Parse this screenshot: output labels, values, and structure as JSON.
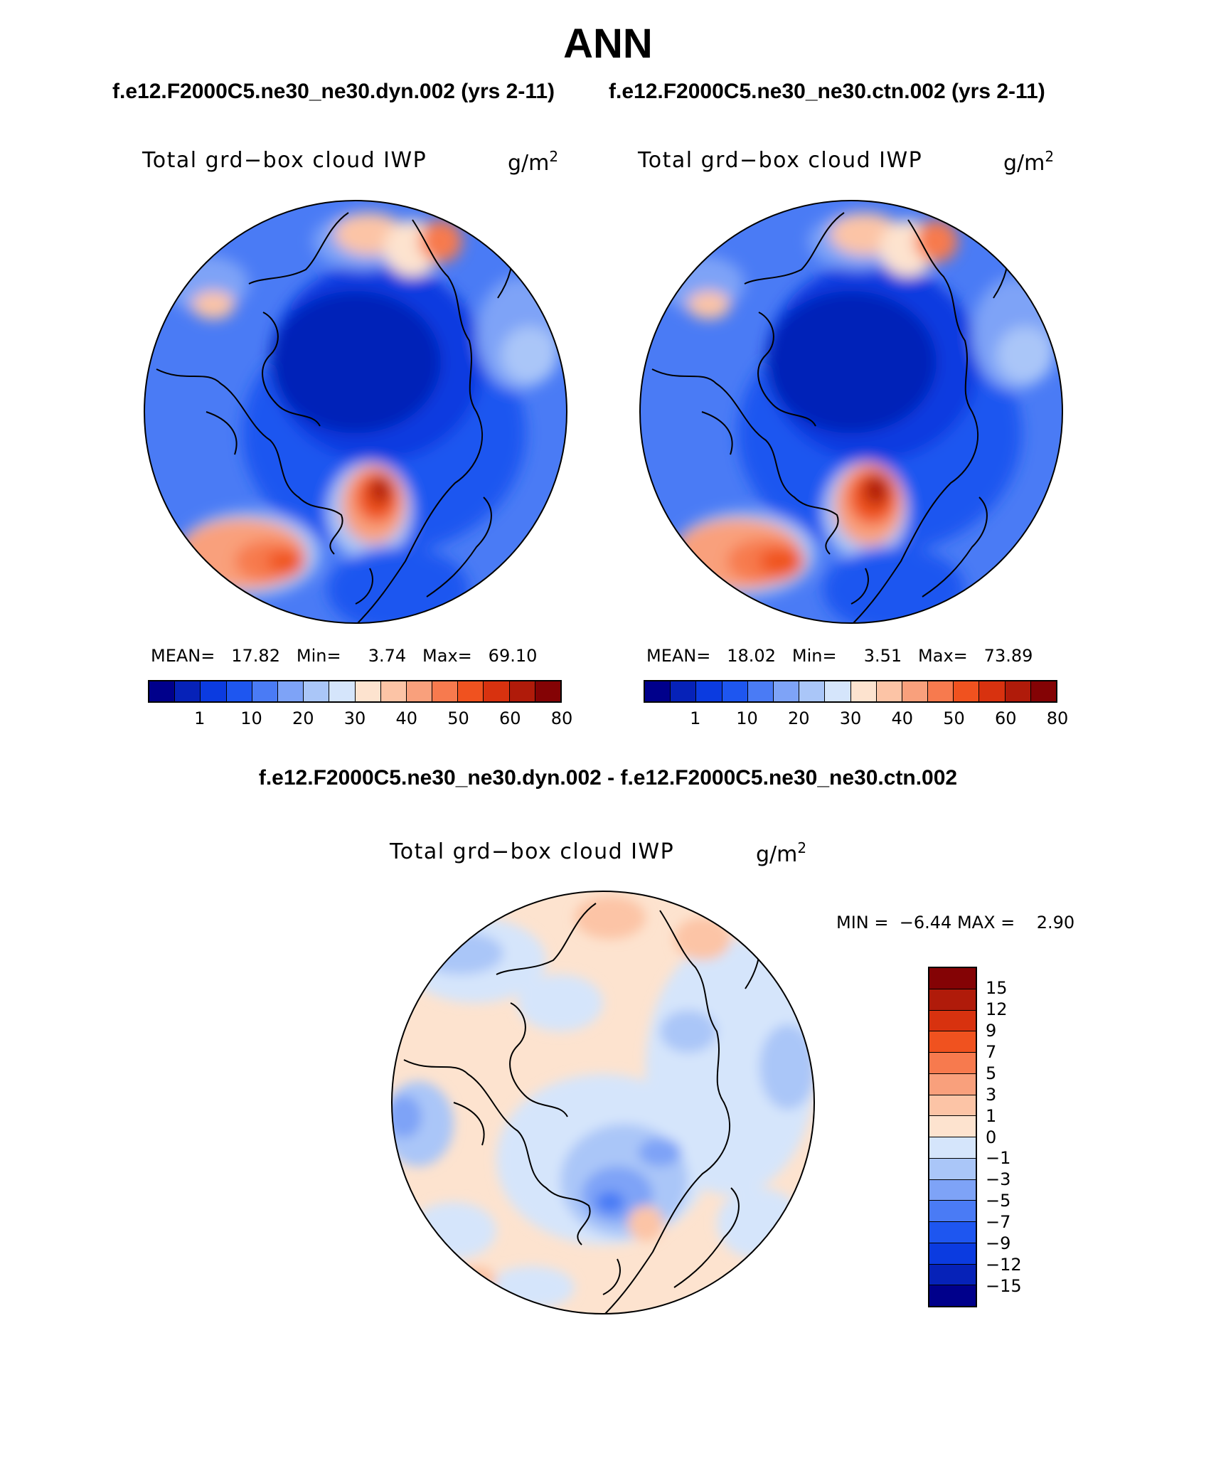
{
  "title": "ANN",
  "case_titles": {
    "left": "f.e12.F2000C5.ne30_ne30.dyn.002 (yrs 2-11)",
    "right": "f.e12.F2000C5.ne30_ne30.ctn.002 (yrs 2-11)"
  },
  "diff_title": "f.e12.F2000C5.ne30_ne30.dyn.002 - f.e12.F2000C5.ne30_ne30.ctn.002",
  "panels": [
    {
      "variable": "Total grd−box cloud IWP",
      "units_base": "g/m",
      "units_exp": "2",
      "mean_label": "MEAN=",
      "mean": "17.82",
      "min_label": "Min=",
      "min": "3.74",
      "max_label": "Max=",
      "max": "69.10"
    },
    {
      "variable": "Total grd−box cloud IWP",
      "units_base": "g/m",
      "units_exp": "2",
      "mean_label": "MEAN=",
      "mean": "18.02",
      "min_label": "Min=",
      "min": "3.51",
      "max_label": "Max=",
      "max": "73.89"
    }
  ],
  "diff_panel": {
    "variable": "Total grd−box cloud IWP",
    "units_base": "g/m",
    "units_exp": "2",
    "min_label": "MIN =",
    "min": "−6.44",
    "max_label": "MAX =",
    "max": "2.90"
  },
  "colorbar_abs": {
    "colors": [
      "#00008b",
      "#0622b8",
      "#0b3be0",
      "#1e56f0",
      "#4a7bf5",
      "#7ea3f7",
      "#aac6f8",
      "#d5e5fb",
      "#fde3cf",
      "#fcc4a6",
      "#f9a07c",
      "#f77a4e",
      "#f0521f",
      "#d8320f",
      "#b01b0a",
      "#840305"
    ],
    "ticks": [
      "1",
      "10",
      "20",
      "30",
      "40",
      "50",
      "60",
      "80"
    ]
  },
  "colorbar_diff": {
    "colors": [
      "#840305",
      "#b01b0a",
      "#d8320f",
      "#f0521f",
      "#f77a4e",
      "#f9a07c",
      "#fcc4a6",
      "#fde3cf",
      "#d5e5fb",
      "#aac6f8",
      "#7ea3f7",
      "#4a7bf5",
      "#1e56f0",
      "#0b3be0",
      "#0622b8",
      "#00008b"
    ],
    "ticks": [
      "15",
      "12",
      "9",
      "7",
      "5",
      "3",
      "1",
      "0",
      "−1",
      "−3",
      "−5",
      "−7",
      "−9",
      "−12",
      "−15"
    ]
  }
}
